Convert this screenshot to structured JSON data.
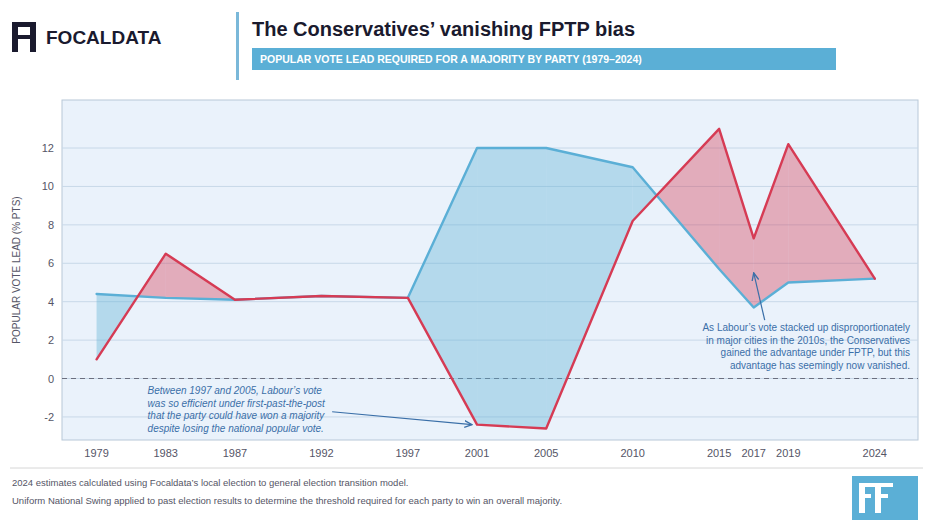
{
  "chart_data": {
    "type": "line",
    "title": "The Conservatives’ vanishing FPTP bias",
    "subtitle": "POPULAR VOTE LEAD REQUIRED FOR A MAJORITY BY PARTY (1979–2024)",
    "ylabel": "POPULAR VOTE LEAD (% PTS)",
    "brand": "FOCALDATA",
    "x": [
      1979,
      1983,
      1987,
      1992,
      1997,
      2001,
      2005,
      2010,
      2015,
      2017,
      2019,
      2024
    ],
    "series": [
      {
        "color": "#5bafd6",
        "values": [
          4.4,
          4.2,
          4.1,
          4.3,
          4.2,
          12.0,
          12.0,
          11.0,
          5.7,
          3.7,
          5.0,
          5.2
        ]
      },
      {
        "color": "#d63b54",
        "values": [
          1.0,
          6.5,
          4.1,
          4.3,
          4.2,
          -2.4,
          -2.6,
          8.2,
          13.0,
          7.3,
          12.2,
          5.2
        ]
      }
    ],
    "xlim": [
      1977,
      2026.5
    ],
    "xticks": [
      1979,
      1983,
      1987,
      1992,
      1997,
      2001,
      2005,
      2010,
      2015,
      2017,
      2019,
      2024
    ],
    "ylim": [
      -3.2,
      14.5
    ],
    "yticks": [
      -2,
      0,
      2,
      4,
      6,
      8,
      10,
      12
    ],
    "grid": true,
    "annotations": [
      "Between 1997 and 2005, Labour’s vote\nwas so efficient under first-past-the-post\nthat the party could have won a majority\ndespite losing the national popular vote.",
      "As Labour’s vote stacked up disproportionately\nin major cities in the 2010s, the Conservatives\ngained the advantage under FPTP, but this\nadvantage has seemingly now vanished."
    ],
    "notes": [
      "2024 estimates calculated using Focaldata’s local election to general election transition model.",
      "Uniform National Swing applied to past election results to determine the threshold required for each party to win an overall majority."
    ]
  }
}
